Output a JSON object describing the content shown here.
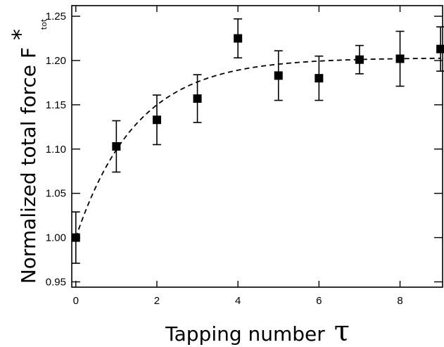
{
  "chart_data": {
    "type": "scatter",
    "xlabel": "Tapping number",
    "xlabel_symbol": "τ",
    "ylabel": "Normalized total force F",
    "ylabel_superscript": "*",
    "ylabel_subscript": "tot",
    "xlim": [
      -0.1,
      9.05
    ],
    "ylim": [
      0.944,
      1.262
    ],
    "x_ticks": [
      0,
      2,
      4,
      6,
      8
    ],
    "x_tick_labels": [
      "0",
      "2",
      "4",
      "6",
      "8"
    ],
    "y_ticks": [
      0.95,
      1.0,
      1.05,
      1.1,
      1.15,
      1.2,
      1.25
    ],
    "y_tick_labels": [
      "0.95",
      "1.00",
      "1.05",
      "1.10",
      "1.15",
      "1.20",
      "1.25"
    ],
    "grid": false,
    "series": [
      {
        "marker": "square",
        "color": "#000000",
        "x": [
          0,
          1,
          2,
          3,
          4,
          5,
          6,
          7,
          8,
          9
        ],
        "y": [
          1.0,
          1.103,
          1.133,
          1.157,
          1.225,
          1.183,
          1.18,
          1.201,
          1.202,
          1.213
        ],
        "error": [
          0.029,
          0.029,
          0.028,
          0.027,
          0.022,
          0.028,
          0.025,
          0.016,
          0.031,
          0.025
        ]
      }
    ],
    "fit": {
      "style": "dashed",
      "color": "#000000",
      "x_range": [
        0,
        9
      ],
      "y_start": 1.0,
      "y_plateau": 1.203,
      "rate": 0.67
    }
  }
}
